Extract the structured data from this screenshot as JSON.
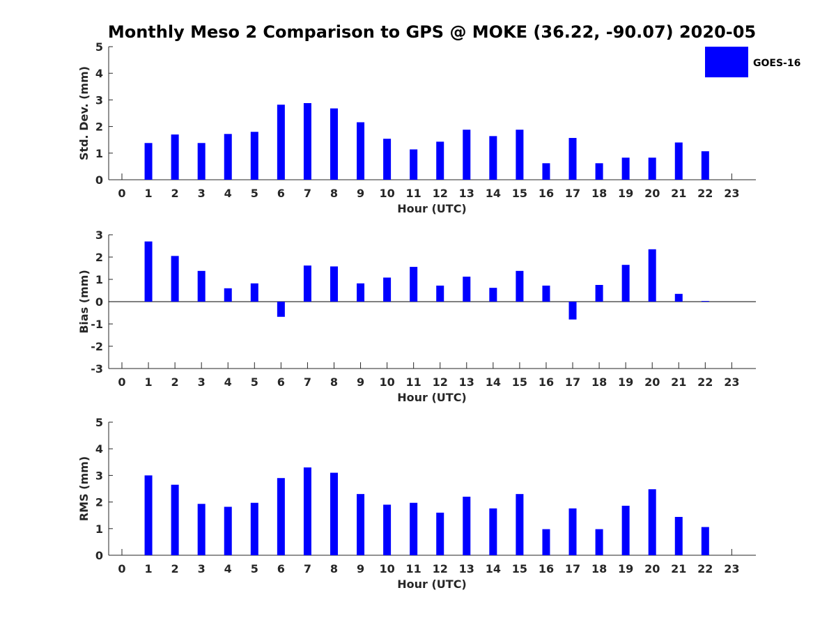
{
  "title": "Monthly Meso 2 Comparison to GPS @ MOKE (36.22, -90.07) 2020-05",
  "legend": {
    "label": "GOES-16",
    "placement": "top-right"
  },
  "colors": {
    "bar": "#0000ff",
    "axis": "#262626",
    "background": "#ffffff"
  },
  "chart_data": [
    {
      "type": "bar",
      "categories": [
        "0",
        "1",
        "2",
        "3",
        "4",
        "5",
        "6",
        "7",
        "8",
        "9",
        "10",
        "11",
        "12",
        "13",
        "14",
        "15",
        "16",
        "17",
        "18",
        "19",
        "20",
        "21",
        "22",
        "23"
      ],
      "series": [
        {
          "name": "GOES-16",
          "values": [
            null,
            1.38,
            1.7,
            1.38,
            1.72,
            1.8,
            2.82,
            2.88,
            2.68,
            2.16,
            1.54,
            1.14,
            1.43,
            1.88,
            1.64,
            1.88,
            0.62,
            1.57,
            0.62,
            0.83,
            0.83,
            1.4,
            1.07,
            null
          ]
        }
      ],
      "xlabel": "Hour (UTC)",
      "ylabel": "Std. Dev. (mm)",
      "ylim": [
        0,
        5
      ],
      "yticks": [
        "0",
        "1",
        "2",
        "3",
        "4",
        "5"
      ],
      "grid": false
    },
    {
      "type": "bar",
      "categories": [
        "0",
        "1",
        "2",
        "3",
        "4",
        "5",
        "6",
        "7",
        "8",
        "9",
        "10",
        "11",
        "12",
        "13",
        "14",
        "15",
        "16",
        "17",
        "18",
        "19",
        "20",
        "21",
        "22",
        "23"
      ],
      "series": [
        {
          "name": "GOES-16",
          "values": [
            null,
            2.7,
            2.05,
            1.38,
            0.6,
            0.82,
            -0.68,
            1.62,
            1.58,
            0.82,
            1.08,
            1.56,
            0.72,
            1.12,
            0.62,
            1.38,
            0.72,
            -0.8,
            0.75,
            1.65,
            2.35,
            0.35,
            0.03,
            null
          ]
        }
      ],
      "xlabel": "Hour (UTC)",
      "ylabel": "Bias (mm)",
      "ylim": [
        -3,
        3
      ],
      "yticks": [
        "-3",
        "-2",
        "-1",
        "0",
        "1",
        "2",
        "3"
      ],
      "zero_line": true,
      "grid": false
    },
    {
      "type": "bar",
      "categories": [
        "0",
        "1",
        "2",
        "3",
        "4",
        "5",
        "6",
        "7",
        "8",
        "9",
        "10",
        "11",
        "12",
        "13",
        "14",
        "15",
        "16",
        "17",
        "18",
        "19",
        "20",
        "21",
        "22",
        "23"
      ],
      "series": [
        {
          "name": "GOES-16",
          "values": [
            null,
            3.0,
            2.65,
            1.93,
            1.82,
            1.97,
            2.9,
            3.3,
            3.1,
            2.3,
            1.9,
            1.97,
            1.6,
            2.2,
            1.76,
            2.3,
            0.98,
            1.76,
            0.98,
            1.86,
            2.48,
            1.44,
            1.06,
            null
          ]
        }
      ],
      "xlabel": "Hour (UTC)",
      "ylabel": "RMS (mm)",
      "ylim": [
        0,
        5
      ],
      "yticks": [
        "0",
        "1",
        "2",
        "3",
        "4",
        "5"
      ],
      "grid": false
    }
  ]
}
